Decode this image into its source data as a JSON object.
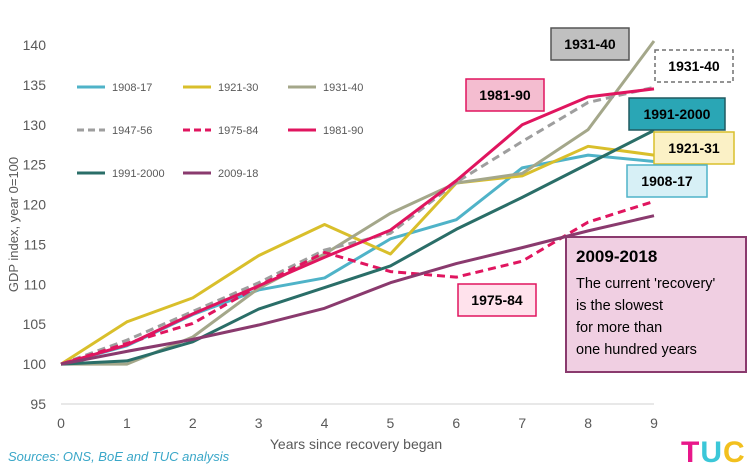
{
  "chart_data": {
    "type": "line",
    "title": "",
    "xlabel": "Years since recovery began",
    "ylabel": "GDP index, year 0=100",
    "x": [
      0,
      1,
      2,
      3,
      4,
      5,
      6,
      7,
      8,
      9
    ],
    "xlim": [
      0,
      9
    ],
    "ylim": [
      95,
      140
    ],
    "yticks": [
      95,
      100,
      105,
      110,
      115,
      120,
      125,
      130,
      135,
      140
    ],
    "grid": false,
    "legend_position": "top-left",
    "series": [
      {
        "name": "1908-17",
        "color": "#4fb3c8",
        "dash": false,
        "values": [
          100,
          102.3,
          106.2,
          109.3,
          110.8,
          115.7,
          118.1,
          124.6,
          126.2,
          125.4
        ]
      },
      {
        "name": "1921-30",
        "color": "#d9bf2b",
        "dash": false,
        "values": [
          100,
          105.3,
          108.3,
          113.6,
          117.5,
          113.8,
          122.7,
          123.6,
          127.3,
          126.2
        ]
      },
      {
        "name": "1931-40",
        "color": "#a4a78a",
        "dash": false,
        "values": [
          100,
          100,
          103.4,
          109.5,
          113.8,
          118.9,
          122.7,
          123.9,
          129.4,
          140.5
        ]
      },
      {
        "name": "1947-56",
        "color": "#9e9e9e",
        "dash": true,
        "values": [
          100,
          103,
          106.6,
          110.2,
          114.3,
          116.4,
          122.8,
          127.9,
          132.8,
          134.7
        ]
      },
      {
        "name": "1975-84",
        "color": "#e0155f",
        "dash": true,
        "values": [
          100,
          102.6,
          105.1,
          109.8,
          114.0,
          111.6,
          110.9,
          112.9,
          117.8,
          120.4
        ]
      },
      {
        "name": "1981-90",
        "color": "#e0155f",
        "dash": false,
        "values": [
          100,
          102.4,
          106.3,
          109.8,
          113.4,
          116.8,
          123.0,
          130.0,
          133.5,
          134.5
        ]
      },
      {
        "name": "1991-2000",
        "color": "#2a6e68",
        "dash": false,
        "values": [
          100,
          100.4,
          102.8,
          106.9,
          109.6,
          112.3,
          116.9,
          120.9,
          125.1,
          129.3
        ]
      },
      {
        "name": "2009-18",
        "color": "#8a3a6e",
        "dash": false,
        "values": [
          100,
          101.6,
          103.1,
          104.9,
          107.0,
          110.2,
          112.6,
          114.6,
          116.7,
          118.6
        ]
      }
    ],
    "annotations": [
      {
        "label": "1931-40",
        "fill": "#c0c0c0",
        "border": "#555555",
        "textColor": "#000000",
        "dashed": false
      },
      {
        "label": "1931-40",
        "fill": "#ffffff",
        "border": "#707070",
        "textColor": "#000000",
        "dashed": true
      },
      {
        "label": "1981-90",
        "fill": "#f4bdd0",
        "border": "#e0155f",
        "textColor": "#000000",
        "dashed": false
      },
      {
        "label": "1991-2000",
        "fill": "#2aa6b5",
        "border": "#205a60",
        "textColor": "#000000",
        "dashed": false
      },
      {
        "label": "1921-31",
        "fill": "#fbf1c6",
        "border": "#d9bf2b",
        "textColor": "#000000",
        "dashed": false
      },
      {
        "label": "1908-17",
        "fill": "#d7f0f6",
        "border": "#4fb3c8",
        "textColor": "#000000",
        "dashed": false
      },
      {
        "label": "1975-84",
        "fill": "#ffe2ec",
        "border": "#e0155f",
        "textColor": "#000000",
        "dashed": false
      }
    ],
    "callout": {
      "title": "2009-2018",
      "lines": [
        "The current 'recovery'",
        "is the slowest",
        "for more than",
        "one hundred years"
      ],
      "fill": "#f0cfe2",
      "border": "#8a3a6e"
    }
  },
  "footer": {
    "source": "Sources: ONS, BoE and TUC analysis",
    "logo": [
      "T",
      "U",
      "C"
    ]
  }
}
